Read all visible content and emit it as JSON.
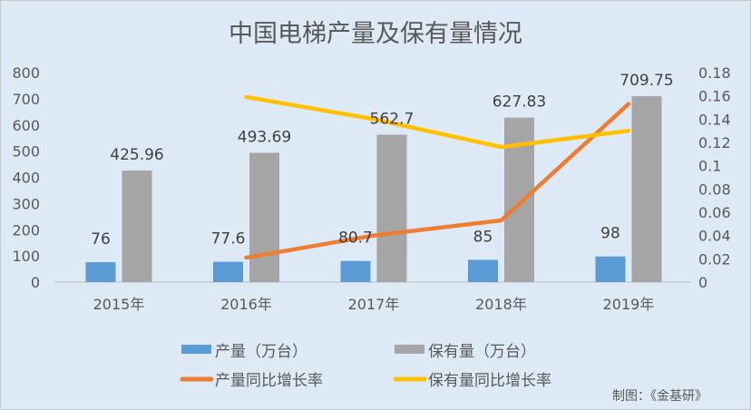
{
  "chart_data": {
    "type": "bar",
    "title": "中国电梯产量及保有量情况",
    "categories": [
      "2015年",
      "2016年",
      "2017年",
      "2018年",
      "2019年"
    ],
    "ylim": [
      0,
      800
    ],
    "yticks": [
      "0",
      "100",
      "200",
      "300",
      "400",
      "500",
      "600",
      "700",
      "800"
    ],
    "y2lim": [
      0,
      0.18
    ],
    "y2ticks": [
      "0",
      "0.02",
      "0.04",
      "0.06",
      "0.08",
      "0.1",
      "0.12",
      "0.14",
      "0.16",
      "0.18"
    ],
    "series": [
      {
        "name": "产量（万台）",
        "type": "bar",
        "axis": "left",
        "color": "#5b9bd5",
        "values": [
          76,
          77.6,
          80.7,
          85,
          98
        ],
        "labels": [
          "76",
          "77.6",
          "80.7",
          "85",
          "98"
        ]
      },
      {
        "name": "保有量（万台）",
        "type": "bar",
        "axis": "left",
        "color": "#a5a5a5",
        "values": [
          425.96,
          493.69,
          562.7,
          627.83,
          709.75
        ],
        "labels": [
          "425.96",
          "493.69",
          "562.7",
          "627.83",
          "709.75"
        ]
      },
      {
        "name": "产量同比增长率",
        "type": "line",
        "axis": "right",
        "color": "#ed7d31",
        "values": [
          null,
          0.021,
          0.04,
          0.053,
          0.153
        ]
      },
      {
        "name": "保有量同比增长率",
        "type": "line",
        "axis": "right",
        "color": "#ffc000",
        "values": [
          null,
          0.159,
          0.14,
          0.116,
          0.13
        ]
      }
    ],
    "legend_position": "bottom",
    "source": "制图：《金基研》"
  }
}
